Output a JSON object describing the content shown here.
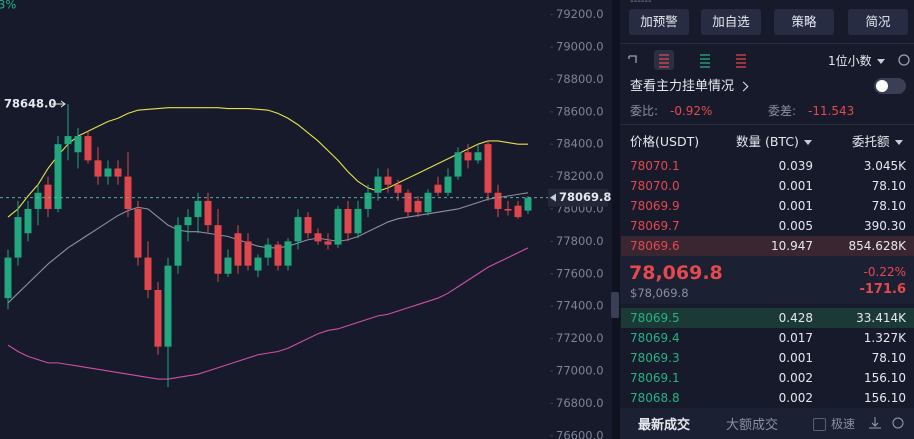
{
  "chart_data": {
    "type": "candlestick",
    "corner_text": "3%",
    "ylim": [
      76580,
      79290
    ],
    "yticks": [
      {
        "value": 79200,
        "label": "79200.0"
      },
      {
        "value": 79000,
        "label": "79000.0"
      },
      {
        "value": 78800,
        "label": "78800.0"
      },
      {
        "value": 78600,
        "label": "78600.0"
      },
      {
        "value": 78400,
        "label": "78400.0"
      },
      {
        "value": 78200,
        "label": "78200.0"
      },
      {
        "value": 78000,
        "label": "78000.0"
      },
      {
        "value": 77800,
        "label": "77800.0"
      },
      {
        "value": 77600,
        "label": "77600.0"
      },
      {
        "value": 77400,
        "label": "77400.0"
      },
      {
        "value": 77200,
        "label": "77200.0"
      },
      {
        "value": 77000,
        "label": "77000.0"
      },
      {
        "value": 76800,
        "label": "76800.0"
      },
      {
        "value": 76600,
        "label": "76600.0"
      }
    ],
    "up_color": "#23a77f",
    "down_color": "#e0474c",
    "open": [
      77450,
      77700,
      77850,
      78000,
      78150,
      78000,
      78400,
      78350,
      78450,
      78300,
      78200,
      78250,
      78200,
      78000,
      77700,
      77500,
      77150,
      77650,
      77900,
      77950,
      78050,
      77900,
      77600,
      77850,
      77800,
      77620,
      77700,
      77780,
      77650,
      77800,
      77950,
      77850,
      77800,
      77780,
      78000,
      77850,
      78000,
      78100,
      78200,
      78150,
      78100,
      78050,
      77980,
      78150,
      78100,
      78200,
      78350,
      78300,
      78400,
      78100,
      78000,
      78020,
      77990
    ],
    "high": [
      77750,
      78050,
      78050,
      78150,
      78200,
      78450,
      78648,
      78500,
      78480,
      78380,
      78300,
      78300,
      78350,
      78050,
      77800,
      77550,
      77700,
      77950,
      78000,
      78100,
      78100,
      78000,
      77750,
      77900,
      77850,
      77720,
      77820,
      77800,
      77820,
      78000,
      77980,
      77880,
      77850,
      78020,
      78050,
      78050,
      78150,
      78250,
      78250,
      78180,
      78120,
      78080,
      78120,
      78200,
      78250,
      78380,
      78400,
      78400,
      78420,
      78150,
      78050,
      78050,
      78080
    ],
    "low": [
      77380,
      77650,
      77800,
      77900,
      77950,
      77980,
      78300,
      78250,
      78280,
      78150,
      78150,
      78150,
      77950,
      77650,
      77450,
      77100,
      76900,
      77600,
      77800,
      77850,
      77850,
      77550,
      77580,
      77600,
      77620,
      77580,
      77650,
      77620,
      77620,
      77750,
      77820,
      77780,
      77750,
      77760,
      77800,
      77820,
      77950,
      78050,
      78100,
      78050,
      77950,
      77950,
      77960,
      78080,
      78080,
      78180,
      78250,
      78280,
      78050,
      77950,
      77960,
      77940,
      77970
    ],
    "close": [
      77700,
      77950,
      78000,
      78100,
      78000,
      78400,
      78450,
      78450,
      78300,
      78200,
      78250,
      78200,
      78000,
      77700,
      77500,
      77150,
      77650,
      77900,
      77950,
      78050,
      77900,
      77600,
      77700,
      77650,
      77650,
      77700,
      77780,
      77650,
      77800,
      77950,
      77850,
      77800,
      77780,
      78000,
      77850,
      78000,
      78100,
      78200,
      78150,
      78100,
      77980,
      77980,
      78100,
      78100,
      78200,
      78350,
      78300,
      78350,
      78100,
      78000,
      77990,
      77950,
      78069.8
    ],
    "bands": [
      {
        "color": "#e8e04a",
        "values": [
          77950,
          78000,
          78080,
          78150,
          78250,
          78330,
          78400,
          78450,
          78480,
          78510,
          78540,
          78560,
          78590,
          78610,
          78615,
          78620,
          78625,
          78625,
          78625,
          78625,
          78625,
          78625,
          78620,
          78620,
          78620,
          78615,
          78610,
          78590,
          78560,
          78520,
          78470,
          78420,
          78360,
          78300,
          78230,
          78170,
          78130,
          78110,
          78130,
          78160,
          78190,
          78220,
          78250,
          78280,
          78310,
          78340,
          78370,
          78400,
          78420,
          78420,
          78410,
          78400,
          78400
        ]
      },
      {
        "color": "#8d909c",
        "values": [
          77420,
          77480,
          77540,
          77600,
          77660,
          77710,
          77760,
          77800,
          77840,
          77880,
          77920,
          77960,
          77990,
          78010,
          78000,
          77950,
          77900,
          77870,
          77860,
          77860,
          77850,
          77840,
          77830,
          77810,
          77790,
          77770,
          77760,
          77760,
          77770,
          77790,
          77810,
          77820,
          77810,
          77800,
          77810,
          77830,
          77860,
          77890,
          77920,
          77940,
          77950,
          77960,
          77970,
          77980,
          77990,
          78000,
          78020,
          78040,
          78060,
          78070,
          78080,
          78090,
          78100
        ]
      },
      {
        "color": "#d04fa8",
        "values": [
          77160,
          77120,
          77090,
          77070,
          77050,
          77050,
          77040,
          77030,
          77020,
          77010,
          77000,
          76990,
          76980,
          76970,
          76960,
          76950,
          76950,
          76960,
          76970,
          76980,
          77000,
          77020,
          77040,
          77060,
          77080,
          77100,
          77110,
          77120,
          77140,
          77170,
          77200,
          77230,
          77250,
          77260,
          77280,
          77300,
          77320,
          77340,
          77350,
          77370,
          77390,
          77410,
          77430,
          77450,
          77480,
          77520,
          77560,
          77600,
          77640,
          77670,
          77700,
          77730,
          77760
        ]
      }
    ],
    "last": {
      "value": 78069.8,
      "label": "78069.8"
    },
    "high_label": {
      "value": 78648.0,
      "label": "78648.0"
    }
  },
  "panel": {
    "top_text": "------",
    "buttons": [
      "加预警",
      "加自选",
      "策略",
      "简况"
    ],
    "decimals": "1位小数",
    "main_orders": "查看主力挂单情况",
    "ratio_label": "委比:",
    "ratio": "-0.92%",
    "diff_label": "委差:",
    "diff": "-11.543",
    "headers": [
      "价格(USDT)",
      "数量 (BTC)",
      "委托额"
    ],
    "asks": [
      [
        "78070.1",
        "0.039",
        "3.045K"
      ],
      [
        "78070.0",
        "0.001",
        "78.10"
      ],
      [
        "78069.9",
        "0.001",
        "78.10"
      ],
      [
        "78069.7",
        "0.005",
        "390.30"
      ],
      [
        "78069.6",
        "10.947",
        "854.628K"
      ]
    ],
    "last_price": "78,069.8",
    "last_usd": "$78,069.8",
    "change_pct": "-0.22%",
    "change": "-171.6",
    "bids": [
      [
        "78069.5",
        "0.428",
        "33.414K"
      ],
      [
        "78069.4",
        "0.017",
        "1.327K"
      ],
      [
        "78069.3",
        "0.001",
        "78.10"
      ],
      [
        "78069.1",
        "0.002",
        "156.10"
      ],
      [
        "78068.8",
        "0.002",
        "156.10"
      ]
    ],
    "tabs": [
      "最新成交",
      "大额成交"
    ],
    "speed": "极速"
  }
}
